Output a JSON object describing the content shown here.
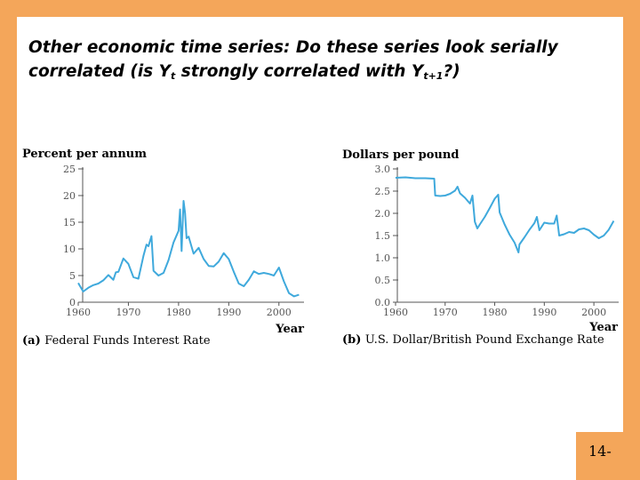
{
  "slide": {
    "title_line1": "Other economic time series: Do these series look serially",
    "title_line2_a": "correlated (is Y",
    "title_sub_t": "t",
    "title_line2_b": " strongly correlated with Y",
    "title_sub_t1": "t+1",
    "title_line2_c": "?)",
    "page_number": "14-"
  },
  "colors": {
    "frame": "#f4a65a",
    "series": "#3fa9dc",
    "axis": "#555555"
  },
  "chart_data": [
    {
      "type": "line",
      "title": "",
      "ylabel": "Percent per annum",
      "xlabel": "Year",
      "caption_letter": "(a)",
      "caption_text": "Federal Funds Interest Rate",
      "xlim": [
        1960,
        2005
      ],
      "ylim": [
        0,
        25
      ],
      "x_ticks": [
        1960,
        1970,
        1980,
        1990,
        2000
      ],
      "y_ticks": [
        0,
        5,
        10,
        15,
        20,
        25
      ],
      "series": [
        {
          "x": [
            1960,
            1961,
            1962,
            1963,
            1964,
            1965,
            1966,
            1967,
            1967.5,
            1968,
            1969,
            1970,
            1971,
            1972,
            1973,
            1973.6,
            1974,
            1974.6,
            1975,
            1976,
            1977,
            1978,
            1979,
            1980,
            1980.3,
            1980.6,
            1981,
            1981.3,
            1981.6,
            1982,
            1983,
            1984,
            1985,
            1986,
            1987,
            1988,
            1989,
            1990,
            1991,
            1992,
            1993,
            1994,
            1995,
            1996,
            1997,
            1998,
            1999,
            2000,
            2001,
            2002,
            2003,
            2004
          ],
          "y": [
            3.6,
            2.0,
            2.7,
            3.2,
            3.5,
            4.1,
            5.1,
            4.2,
            5.6,
            5.7,
            8.2,
            7.2,
            4.7,
            4.4,
            8.7,
            10.8,
            10.5,
            12.4,
            5.9,
            5.0,
            5.5,
            7.9,
            11.2,
            13.4,
            17.4,
            9.6,
            19.0,
            16.7,
            12.0,
            12.3,
            9.1,
            10.2,
            8.1,
            6.8,
            6.7,
            7.6,
            9.2,
            8.1,
            5.7,
            3.5,
            3.0,
            4.2,
            5.8,
            5.3,
            5.5,
            5.3,
            5.0,
            6.5,
            3.9,
            1.7,
            1.1,
            1.4
          ]
        }
      ]
    },
    {
      "type": "line",
      "title": "",
      "ylabel": "Dollars per pound",
      "xlabel": "Year",
      "caption_letter": "(b)",
      "caption_text": "U.S. Dollar/British Pound Exchange Rate",
      "xlim": [
        1960,
        2005
      ],
      "ylim": [
        0,
        3.0
      ],
      "x_ticks": [
        1960,
        1970,
        1980,
        1990,
        2000
      ],
      "y_ticks": [
        0.0,
        0.5,
        1.0,
        1.5,
        2.0,
        2.5,
        3.0
      ],
      "series": [
        {
          "x": [
            1960,
            1962,
            1964,
            1966,
            1967.8,
            1968,
            1969,
            1970,
            1971,
            1972,
            1972.5,
            1973,
            1974,
            1975,
            1975.5,
            1976,
            1976.5,
            1977,
            1978,
            1979,
            1980,
            1980.7,
            1981,
            1982,
            1983,
            1984,
            1984.8,
            1985,
            1986,
            1987,
            1988,
            1988.5,
            1989,
            1990,
            1991,
            1992,
            1992.5,
            1993,
            1994,
            1995,
            1996,
            1997,
            1998,
            1999,
            2000,
            2001,
            2002,
            2003,
            2004
          ],
          "y": [
            2.8,
            2.81,
            2.79,
            2.79,
            2.78,
            2.4,
            2.39,
            2.4,
            2.44,
            2.51,
            2.6,
            2.45,
            2.35,
            2.22,
            2.4,
            1.81,
            1.66,
            1.75,
            1.92,
            2.12,
            2.33,
            2.42,
            2.02,
            1.75,
            1.52,
            1.34,
            1.12,
            1.3,
            1.46,
            1.63,
            1.78,
            1.92,
            1.62,
            1.79,
            1.77,
            1.77,
            1.95,
            1.5,
            1.53,
            1.58,
            1.56,
            1.64,
            1.66,
            1.62,
            1.52,
            1.44,
            1.5,
            1.63,
            1.83
          ]
        }
      ]
    }
  ]
}
